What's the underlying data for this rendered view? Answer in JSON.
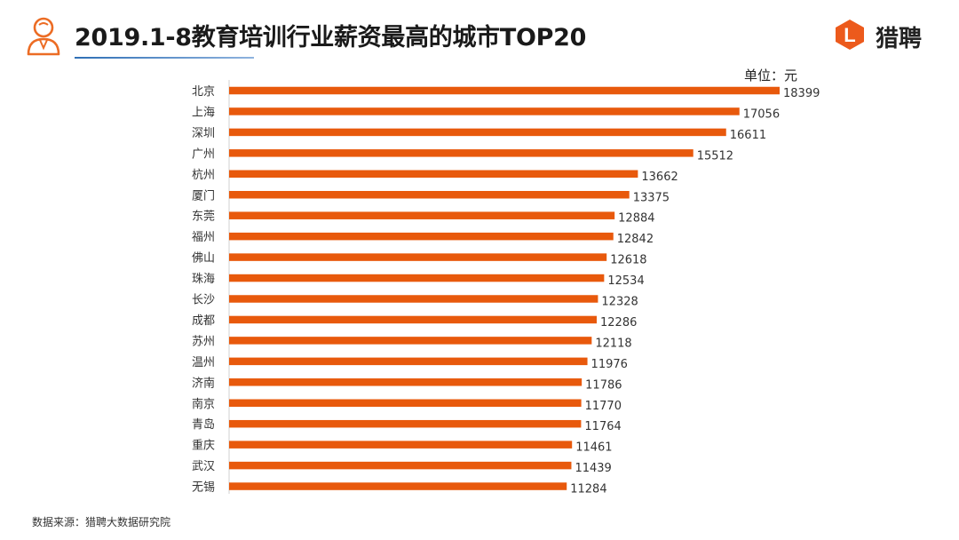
{
  "header": {
    "title": "2019.1-8教育培训行业薪资最高的城市TOP20",
    "logo_text": "猎聘",
    "logo_mark_letter": "L"
  },
  "unit_label": "单位：元",
  "source_note": "数据来源：猎聘大数据研究院",
  "colors": {
    "bar": "#e8590c",
    "accent": "#2f6fb5",
    "icon": "#ec6c24"
  },
  "icons": {
    "header": "person-avatar-icon",
    "logo": "liepin-logo-icon"
  },
  "chart_data": {
    "type": "bar",
    "orientation": "horizontal",
    "title": "2019.1-8教育培训行业薪资最高的城市TOP20",
    "xlabel": "",
    "ylabel": "",
    "xlim": [
      0,
      18399
    ],
    "grid": false,
    "categories": [
      "北京",
      "上海",
      "深圳",
      "广州",
      "杭州",
      "厦门",
      "东莞",
      "福州",
      "佛山",
      "珠海",
      "长沙",
      "成都",
      "苏州",
      "温州",
      "济南",
      "南京",
      "青岛",
      "重庆",
      "武汉",
      "无锡"
    ],
    "values": [
      18399,
      17056,
      16611,
      15512,
      13662,
      13375,
      12884,
      12842,
      12618,
      12534,
      12328,
      12286,
      12118,
      11976,
      11786,
      11770,
      11764,
      11461,
      11439,
      11284
    ]
  }
}
